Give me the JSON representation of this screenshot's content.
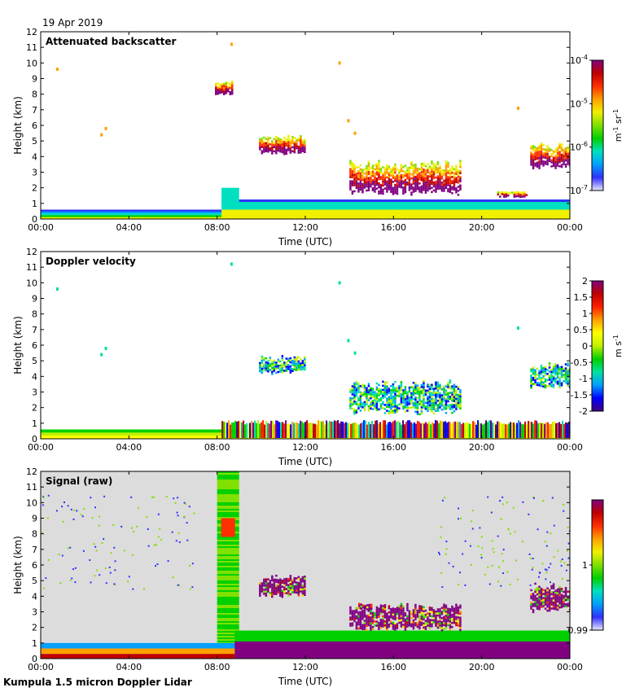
{
  "header": {
    "date": "19 Apr 2019"
  },
  "footer": {
    "instrument": "Kumpula 1.5 micron Doppler Lidar"
  },
  "colors": {
    "rainbow": [
      "#e8e8ff",
      "#3030ff",
      "#00a0ff",
      "#00e0c0",
      "#00d000",
      "#80e000",
      "#f0f000",
      "#ffa000",
      "#ff3000",
      "#c00000",
      "#800080"
    ],
    "velocity": [
      "#400080",
      "#0000ff",
      "#00a0ff",
      "#00e0a0",
      "#00d000",
      "#c0f000",
      "#ffff00",
      "#ffa000",
      "#ff2000",
      "#c00000",
      "#800080"
    ],
    "panel_bg_signal": "#dcdcdc"
  },
  "chart_data": [
    {
      "type": "heatmap",
      "title": "Attenuated backscatter",
      "xlabel": "Time (UTC)",
      "ylabel": "Height (km)",
      "x_ticks": [
        "00:00",
        "04:00",
        "08:00",
        "12:00",
        "16:00",
        "20:00",
        "00:00"
      ],
      "xlim_hours": [
        0,
        24
      ],
      "ylim": [
        0,
        12
      ],
      "y_ticks": [
        "0",
        "1",
        "2",
        "3",
        "4",
        "5",
        "6",
        "7",
        "8",
        "9",
        "10",
        "11",
        "12"
      ],
      "colorbar": {
        "scale": "log",
        "ticks": [
          "10",
          "10",
          "10",
          "10"
        ],
        "exponents": [
          "-4",
          "-5",
          "-6",
          "-7"
        ],
        "values": [
          0.0001,
          1e-05,
          1e-06,
          1e-07
        ],
        "unit_base": [
          "m",
          "sr"
        ],
        "unit_exp": [
          "-1",
          "-1"
        ]
      },
      "features": [
        {
          "kind": "boundary_layer",
          "t0": 0,
          "t1": 24,
          "top_km": 0.6,
          "note": "aerosol layer rising to ~1.2 km after 08:00"
        },
        {
          "kind": "cloud",
          "t0": 7.9,
          "t1": 8.7,
          "h0": 8.0,
          "h1": 8.9
        },
        {
          "kind": "cloud",
          "t0": 9.9,
          "t1": 12.0,
          "h0": 4.2,
          "h1": 5.4
        },
        {
          "kind": "cloud",
          "t0": 14.0,
          "t1": 19.0,
          "h0": 1.6,
          "h1": 3.8
        },
        {
          "kind": "cloud",
          "t0": 22.2,
          "t1": 24.0,
          "h0": 3.2,
          "h1": 4.9
        },
        {
          "kind": "cloud",
          "t0": 20.7,
          "t1": 22.0,
          "h0": 1.4,
          "h1": 1.8
        }
      ]
    },
    {
      "type": "heatmap",
      "title": "Doppler velocity",
      "xlabel": "Time (UTC)",
      "ylabel": "Height (km)",
      "x_ticks": [
        "00:00",
        "04:00",
        "08:00",
        "12:00",
        "16:00",
        "20:00",
        "00:00"
      ],
      "xlim_hours": [
        0,
        24
      ],
      "ylim": [
        0,
        12
      ],
      "y_ticks": [
        "0",
        "1",
        "2",
        "3",
        "4",
        "5",
        "6",
        "7",
        "8",
        "9",
        "10",
        "11",
        "12"
      ],
      "colorbar": {
        "scale": "linear",
        "range": [
          -2,
          2
        ],
        "ticks": [
          "2",
          "1.5",
          "1",
          "0.5",
          "0",
          "-0.5",
          "-1",
          "-1.5",
          "-2"
        ],
        "unit_base": [
          "m",
          "s"
        ],
        "unit_exp": [
          "-1"
        ]
      },
      "features": [
        {
          "kind": "boundary_layer",
          "t0": 0,
          "t1": 24,
          "top_km": 0.6
        },
        {
          "kind": "turbulent_layer",
          "t0": 8.2,
          "t1": 24,
          "top_km": 1.2
        },
        {
          "kind": "cloud",
          "t0": 9.9,
          "t1": 12.0,
          "h0": 4.2,
          "h1": 5.4
        },
        {
          "kind": "cloud",
          "t0": 14.0,
          "t1": 19.0,
          "h0": 1.6,
          "h1": 3.8
        },
        {
          "kind": "cloud",
          "t0": 22.2,
          "t1": 24.0,
          "h0": 3.2,
          "h1": 4.9
        }
      ]
    },
    {
      "type": "heatmap",
      "title": "Signal (raw)",
      "xlabel": "Time (UTC)",
      "ylabel": "Height (km)",
      "x_ticks": [
        "00:00",
        "04:00",
        "08:00",
        "12:00",
        "16:00",
        "20:00",
        "00:00"
      ],
      "xlim_hours": [
        0,
        24
      ],
      "ylim": [
        0,
        12
      ],
      "y_ticks": [
        "0",
        "1",
        "2",
        "3",
        "4",
        "5",
        "6",
        "7",
        "8",
        "9",
        "10",
        "11",
        "12"
      ],
      "colorbar": {
        "scale": "linear",
        "range": [
          0.99,
          1.01
        ],
        "ticks": [
          "1",
          "0.99"
        ],
        "tick_values": [
          1,
          0.99
        ]
      },
      "features": [
        {
          "kind": "noise_column",
          "t0": 8.0,
          "t1": 9.0
        },
        {
          "kind": "high_signal_layer",
          "t0": 8.8,
          "t1": 24,
          "top_km": 1.8
        }
      ]
    }
  ]
}
